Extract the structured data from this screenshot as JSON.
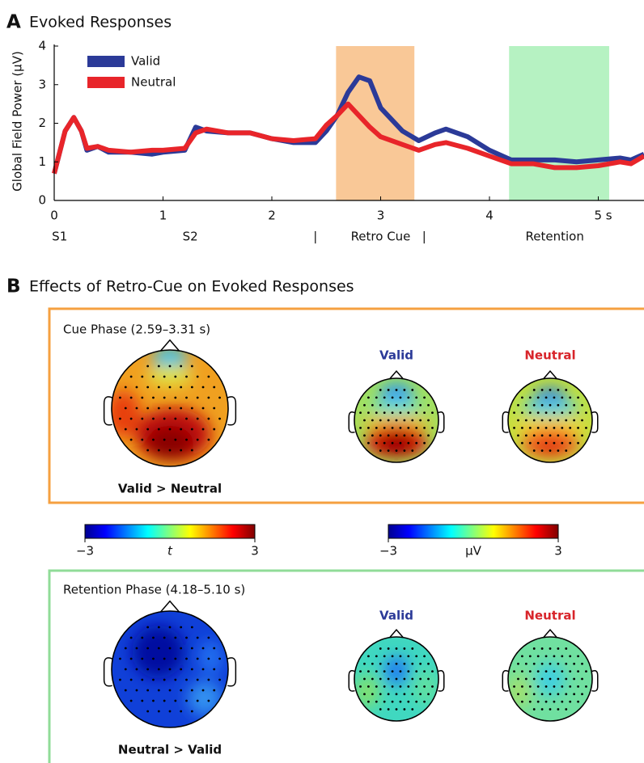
{
  "panel_a": {
    "label": "A",
    "title": "Evoked Responses"
  },
  "chart_data": {
    "type": "line",
    "ylabel": "Global Field Power (μV)",
    "x": [
      0,
      0.1,
      0.18,
      0.25,
      0.3,
      0.4,
      0.5,
      0.7,
      0.9,
      1.0,
      1.2,
      1.3,
      1.4,
      1.6,
      1.8,
      2.0,
      2.2,
      2.4,
      2.5,
      2.6,
      2.7,
      2.8,
      2.9,
      3.0,
      3.2,
      3.35,
      3.5,
      3.6,
      3.8,
      4.0,
      4.2,
      4.4,
      4.6,
      4.8,
      5.0,
      5.2,
      5.3,
      5.42
    ],
    "series": [
      {
        "name": "Valid",
        "color": "#2b3a98",
        "values": [
          0.7,
          1.8,
          2.15,
          1.8,
          1.3,
          1.4,
          1.25,
          1.25,
          1.2,
          1.25,
          1.3,
          1.9,
          1.8,
          1.75,
          1.75,
          1.6,
          1.5,
          1.5,
          1.8,
          2.2,
          2.8,
          3.2,
          3.1,
          2.4,
          1.8,
          1.55,
          1.75,
          1.85,
          1.65,
          1.3,
          1.05,
          1.05,
          1.05,
          1.0,
          1.05,
          1.1,
          1.05,
          1.2
        ]
      },
      {
        "name": "Neutral",
        "color": "#e8252a",
        "values": [
          0.7,
          1.8,
          2.15,
          1.8,
          1.35,
          1.4,
          1.3,
          1.25,
          1.3,
          1.3,
          1.35,
          1.75,
          1.85,
          1.75,
          1.75,
          1.6,
          1.55,
          1.6,
          1.95,
          2.2,
          2.5,
          2.2,
          1.9,
          1.65,
          1.45,
          1.3,
          1.45,
          1.5,
          1.35,
          1.15,
          0.95,
          0.95,
          0.85,
          0.85,
          0.9,
          1.0,
          0.95,
          1.15
        ]
      }
    ],
    "xlim": [
      0,
      5.42
    ],
    "ylim": [
      0,
      4
    ],
    "xticks": [
      0,
      1,
      2,
      3,
      4,
      {
        "value": 5,
        "label": "5 s"
      }
    ],
    "yticks": [
      0,
      1,
      2,
      3,
      4
    ],
    "spans": [
      {
        "start": 2.59,
        "end": 3.31,
        "color": "#f9c897"
      },
      {
        "start": 4.18,
        "end": 5.1,
        "color": "#b6f2c2"
      }
    ],
    "annotations": [
      {
        "text": "S1",
        "x": 0.05
      },
      {
        "text": "S2",
        "x": 1.25
      },
      {
        "text": "|",
        "x": 2.4
      },
      {
        "text": "Retro Cue",
        "x": 3.0
      },
      {
        "text": "|",
        "x": 3.4
      },
      {
        "text": "Retention",
        "x": 4.6
      }
    ],
    "legend": "upper left"
  },
  "panel_b": {
    "label": "B",
    "title": "Effects of Retro-Cue on Evoked Responses",
    "phases": [
      {
        "title": "Cue Phase (2.59–3.31 s)",
        "contrast": "Valid > Neutral",
        "conditions": [
          "Valid",
          "Neutral"
        ]
      },
      {
        "title": "Retention Phase (4.18–5.10 s)",
        "contrast": "Neutral > Valid",
        "conditions": [
          "Valid",
          "Neutral"
        ]
      }
    ],
    "colorbars": [
      {
        "label": "t",
        "lim": [
          -3,
          3
        ],
        "ticks": [
          {
            "value": -3,
            "label": "−3"
          },
          3
        ]
      },
      {
        "label": "μV",
        "lim": [
          -3,
          3
        ],
        "ticks": [
          {
            "value": -3,
            "label": "−3"
          },
          3
        ]
      }
    ]
  }
}
